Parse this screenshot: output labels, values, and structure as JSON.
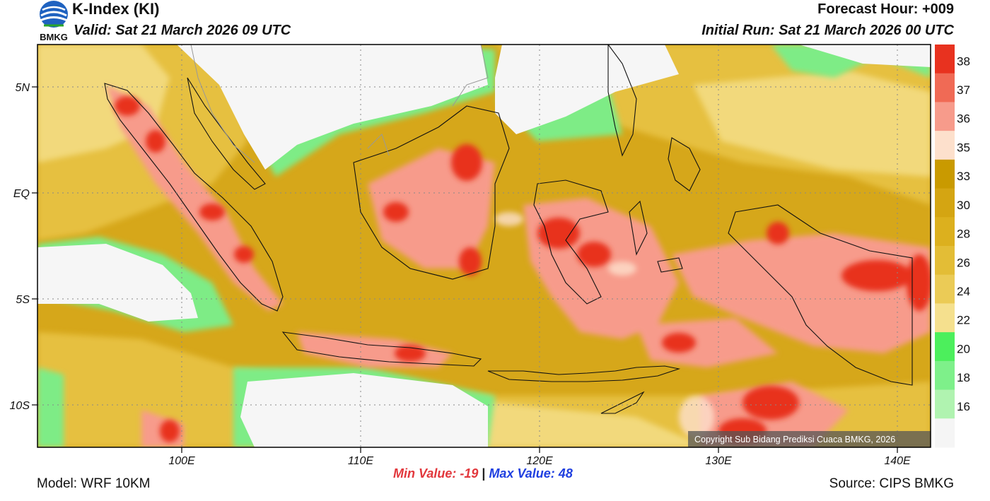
{
  "header": {
    "title": "K-Index (KI)",
    "valid": "Valid: Sat 21 March 2026 09 UTC",
    "forecast_hour": "Forecast Hour: +009",
    "initial_run": "Initial Run: Sat 21 March 2026 00 UTC"
  },
  "logo": {
    "text": "BMKG"
  },
  "map": {
    "lat_labels": [
      "5N",
      "EQ",
      "5S",
      "10S"
    ],
    "lon_labels": [
      "100E",
      "110E",
      "120E",
      "130E",
      "140E"
    ],
    "copyright": "Copyright Sub Bidang Prediksi Cuaca BMKG, 2026"
  },
  "colorbar": {
    "labels": [
      "38",
      "37",
      "36",
      "35",
      "33",
      "30",
      "28",
      "26",
      "24",
      "22",
      "20",
      "18",
      "16"
    ],
    "colors": [
      "#e8321f",
      "#f06a55",
      "#f79b8b",
      "#fde0cc",
      "#c99a00",
      "#d4a512",
      "#dcb01e",
      "#e3bd36",
      "#ebcb56",
      "#f5e08e",
      "#4cef5c",
      "#7ef08a",
      "#b0f3b0",
      "#f5f5f5"
    ]
  },
  "stats": {
    "min_label": "Min Value: -19",
    "separator": "|",
    "max_label": "Max Value:  48"
  },
  "footer": {
    "model": "Model: WRF 10KM",
    "source": "Source: CIPS BMKG"
  }
}
